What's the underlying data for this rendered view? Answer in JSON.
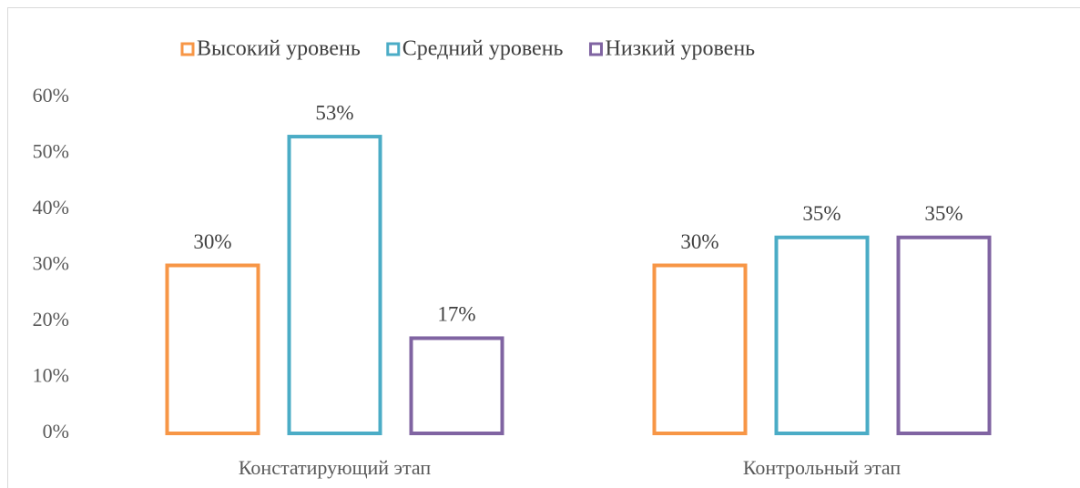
{
  "chart_data": {
    "type": "bar",
    "categories": [
      "Констатирующий этап",
      "Контрольный этап"
    ],
    "series": [
      {
        "name": "Высокий уровень",
        "color": "#f79646",
        "values": [
          30,
          30
        ],
        "value_labels": [
          "30%",
          "30%"
        ]
      },
      {
        "name": "Средний уровень",
        "color": "#4bacc6",
        "values": [
          53,
          35
        ],
        "value_labels": [
          "53%",
          "35%"
        ]
      },
      {
        "name": "Низкий уровень",
        "color": "#8064a2",
        "values": [
          17,
          35
        ],
        "value_labels": [
          "17%",
          "35%"
        ]
      }
    ],
    "ylim": [
      0,
      60
    ],
    "yticks": [
      {
        "value": 0,
        "label": "0%"
      },
      {
        "value": 10,
        "label": "10%"
      },
      {
        "value": 20,
        "label": "20%"
      },
      {
        "value": 30,
        "label": "30%"
      },
      {
        "value": 40,
        "label": "40%"
      },
      {
        "value": 50,
        "label": "50%"
      },
      {
        "value": 60,
        "label": "60%"
      }
    ],
    "legend": "top",
    "grid": false
  }
}
